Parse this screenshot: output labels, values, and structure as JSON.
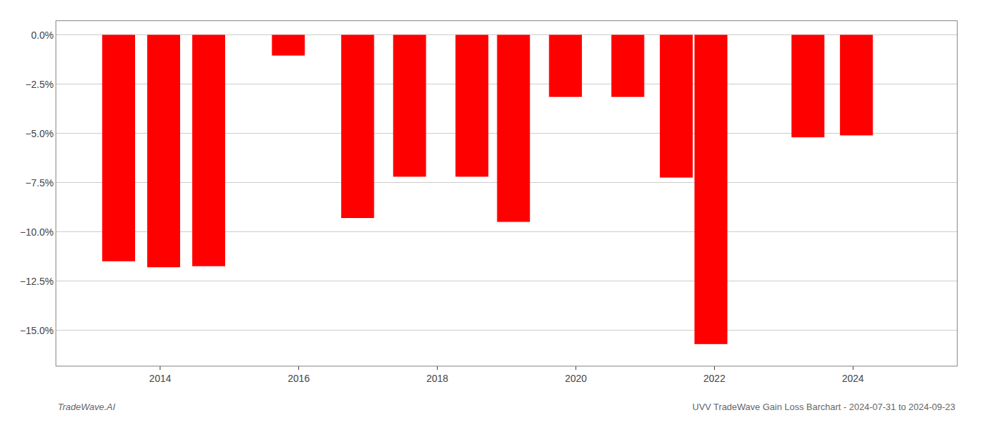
{
  "chart_data": {
    "type": "bar",
    "x": [
      2013.4,
      2014.05,
      2014.7,
      2015.85,
      2016.85,
      2017.6,
      2018.5,
      2019.1,
      2019.85,
      2020.75,
      2021.45,
      2021.95,
      2023.35,
      2024.05
    ],
    "values": [
      -11.5,
      -11.8,
      -11.75,
      -1.05,
      -9.3,
      -7.2,
      -7.2,
      -9.5,
      -3.15,
      -3.15,
      -7.25,
      -15.7,
      -5.2,
      -5.1
    ],
    "color": "#ff0000",
    "xlim": [
      2012.5,
      2025.5
    ],
    "xticks": [
      2014,
      2016,
      2018,
      2020,
      2022,
      2024
    ],
    "ylim": [
      -16.8,
      0.7
    ],
    "yticks": [
      {
        "value": 0.0,
        "label": "0.0%"
      },
      {
        "value": -2.5,
        "label": "−2.5%"
      },
      {
        "value": -5.0,
        "label": "−5.0%"
      },
      {
        "value": -7.5,
        "label": "−7.5%"
      },
      {
        "value": -10.0,
        "label": "−10.0%"
      },
      {
        "value": -12.5,
        "label": "−12.5%"
      },
      {
        "value": -15.0,
        "label": "−15.0%"
      }
    ],
    "grid": true,
    "annotations": [
      "TradeWave.AI",
      "UVV TradeWave Gain Loss Barchart - 2024-07-31 to 2024-09-23"
    ]
  }
}
